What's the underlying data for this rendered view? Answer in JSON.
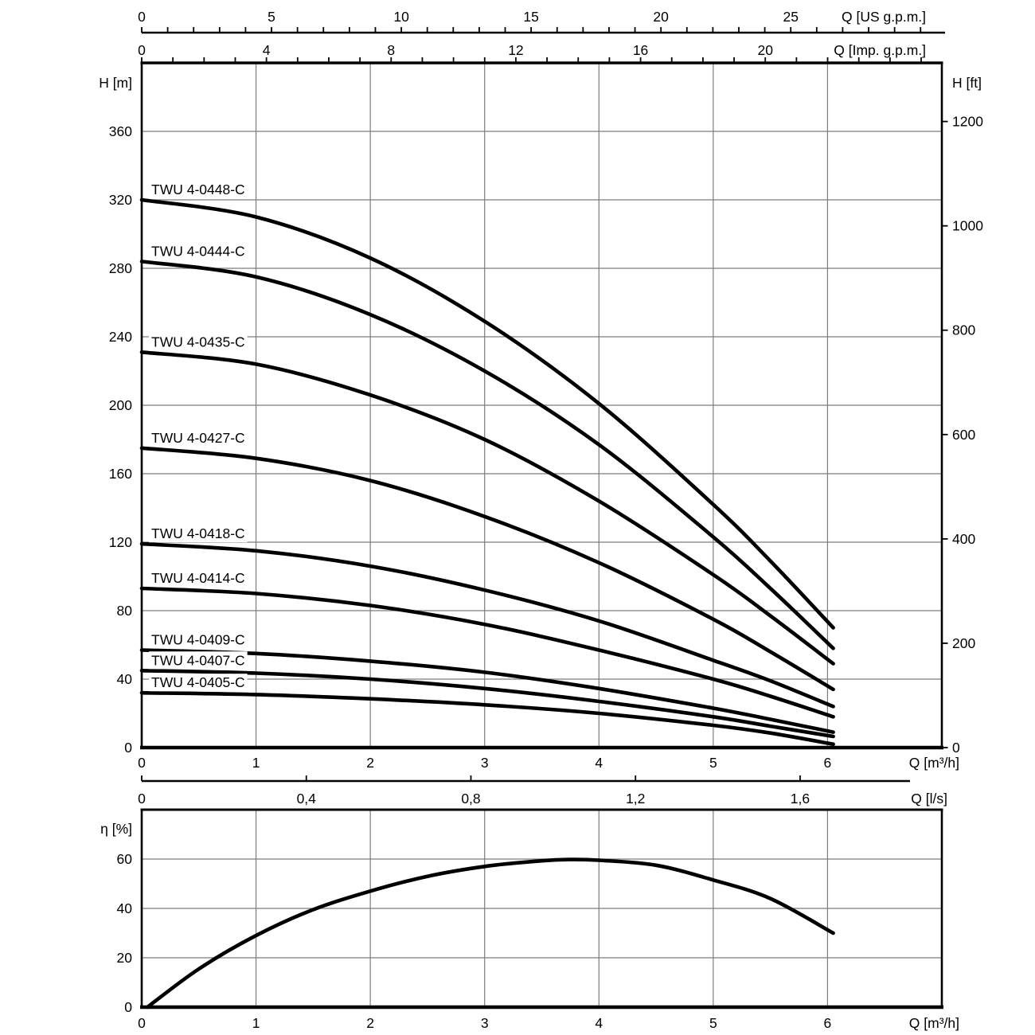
{
  "colors": {
    "curve": "#000000",
    "grid": "#7c7c7c",
    "axis": "#000000",
    "text": "#000000",
    "background": "#ffffff"
  },
  "chart_data": [
    {
      "type": "line",
      "id": "pump-head-chart",
      "title": "",
      "xlim_m3h": [
        0,
        7
      ],
      "ylim_m": [
        0,
        400
      ],
      "grid": {
        "x_step_m3h": 1,
        "y_step_m": 40,
        "grid_on": true
      },
      "x_axes": [
        {
          "id": "us-gpm",
          "unit_label": "Q [US g.p.m.]",
          "tick_labels": [
            "0",
            "5",
            "10",
            "15",
            "20",
            "25"
          ],
          "tick_values": [
            0,
            5,
            10,
            15,
            20,
            25
          ],
          "minor_tick_step": 1,
          "minor_tick_end": 30,
          "units_per_m3h": 4.4029
        },
        {
          "id": "imp-gpm",
          "unit_label": "Q [Imp. g.p.m.]",
          "tick_labels": [
            "0",
            "4",
            "8",
            "12",
            "16",
            "20"
          ],
          "tick_values": [
            0,
            4,
            8,
            12,
            16,
            20
          ],
          "minor_tick_step": 1,
          "minor_tick_end": 25,
          "units_per_m3h": 3.6662
        },
        {
          "id": "m3h",
          "unit_label": "Q [m³/h]",
          "tick_labels": [
            "0",
            "1",
            "2",
            "3",
            "4",
            "5",
            "6"
          ],
          "tick_values": [
            0,
            1,
            2,
            3,
            4,
            5,
            6
          ],
          "units_per_m3h": 1
        },
        {
          "id": "l-s",
          "unit_label": "Q [l/s]",
          "tick_labels": [
            "0",
            "0,4",
            "0,8",
            "1,2",
            "1,6"
          ],
          "tick_values": [
            0,
            0.4,
            0.8,
            1.2,
            1.6
          ],
          "units_per_m3h": 0.2777778
        }
      ],
      "y_axes": [
        {
          "id": "h-m",
          "side": "left",
          "unit_label": "H [m]",
          "tick_labels": [
            "0",
            "40",
            "80",
            "120",
            "160",
            "200",
            "240",
            "280",
            "320",
            "360"
          ],
          "tick_values": [
            0,
            40,
            80,
            120,
            160,
            200,
            240,
            280,
            320,
            360
          ],
          "units_per_m": 1
        },
        {
          "id": "h-ft",
          "side": "right",
          "unit_label": "H [ft]",
          "tick_labels": [
            "0",
            "200",
            "400",
            "600",
            "800",
            "1000",
            "1200"
          ],
          "tick_values": [
            0,
            200,
            400,
            600,
            800,
            1000,
            1200
          ],
          "units_per_m": 3.2808
        }
      ],
      "series": [
        {
          "name": "TWU 4-0448-C",
          "points": [
            [
              0,
              320
            ],
            [
              1,
              310
            ],
            [
              2,
              286
            ],
            [
              3,
              249
            ],
            [
              4,
              201
            ],
            [
              5,
              142
            ],
            [
              5.5,
              109
            ],
            [
              6.05,
              70
            ]
          ]
        },
        {
          "name": "TWU 4-0444-C",
          "points": [
            [
              0,
              284
            ],
            [
              1,
              275
            ],
            [
              2,
              253
            ],
            [
              3,
              220
            ],
            [
              4,
              177
            ],
            [
              5,
              123
            ],
            [
              5.5,
              93
            ],
            [
              6.05,
              58
            ]
          ]
        },
        {
          "name": "TWU 4-0435-C",
          "points": [
            [
              0,
              231
            ],
            [
              1,
              224
            ],
            [
              2,
              206
            ],
            [
              3,
              180
            ],
            [
              4,
              144
            ],
            [
              5,
              101
            ],
            [
              5.5,
              77
            ],
            [
              6.05,
              49
            ]
          ]
        },
        {
          "name": "TWU 4-0427-C",
          "points": [
            [
              0,
              175
            ],
            [
              1,
              169
            ],
            [
              2,
              156
            ],
            [
              3,
              135
            ],
            [
              4,
              108
            ],
            [
              5,
              75
            ],
            [
              5.5,
              56
            ],
            [
              6.05,
              34
            ]
          ]
        },
        {
          "name": "TWU 4-0418-C",
          "points": [
            [
              0,
              119
            ],
            [
              1,
              115
            ],
            [
              2,
              106
            ],
            [
              3,
              92
            ],
            [
              4,
              74
            ],
            [
              5,
              51
            ],
            [
              5.5,
              39
            ],
            [
              6.05,
              24
            ]
          ]
        },
        {
          "name": "TWU 4-0414-C",
          "points": [
            [
              0,
              93
            ],
            [
              1,
              90
            ],
            [
              2,
              83
            ],
            [
              3,
              72
            ],
            [
              4,
              57
            ],
            [
              5,
              40
            ],
            [
              5.5,
              30
            ],
            [
              6.05,
              18
            ]
          ]
        },
        {
          "name": "TWU 4-0409-C",
          "points": [
            [
              0,
              57
            ],
            [
              1,
              55
            ],
            [
              2,
              50.5
            ],
            [
              3,
              44
            ],
            [
              4,
              34.5
            ],
            [
              5,
              23
            ],
            [
              5.5,
              16.5
            ],
            [
              6.05,
              9
            ]
          ]
        },
        {
          "name": "TWU 4-0407-C",
          "points": [
            [
              0,
              45
            ],
            [
              1,
              43.5
            ],
            [
              2,
              40
            ],
            [
              3,
              34.5
            ],
            [
              4,
              27
            ],
            [
              5,
              18
            ],
            [
              5.5,
              12.5
            ],
            [
              6.05,
              6.5
            ]
          ]
        },
        {
          "name": "TWU 4-0405-C",
          "points": [
            [
              0,
              32
            ],
            [
              1,
              31
            ],
            [
              2,
              28.5
            ],
            [
              3,
              25
            ],
            [
              4,
              20
            ],
            [
              5,
              13
            ],
            [
              5.5,
              8.5
            ],
            [
              6.05,
              2
            ]
          ]
        }
      ]
    },
    {
      "type": "line",
      "id": "efficiency-chart",
      "title": "",
      "xlim_m3h": [
        0,
        7
      ],
      "ylim_pct": [
        0,
        80
      ],
      "grid": {
        "x_step_m3h": 1,
        "y_step_pct": 20,
        "grid_on": true
      },
      "y_axis": {
        "unit_label": "η [%]",
        "tick_labels": [
          "0",
          "20",
          "40",
          "60"
        ],
        "tick_values": [
          0,
          20,
          40,
          60
        ]
      },
      "x_axis": {
        "unit_label": "Q [m³/h]",
        "tick_labels": [
          "0",
          "1",
          "2",
          "3",
          "4",
          "5",
          "6"
        ],
        "tick_values": [
          0,
          1,
          2,
          3,
          4,
          5,
          6
        ]
      },
      "series": [
        {
          "name": "efficiency",
          "points": [
            [
              0.05,
              0
            ],
            [
              0.5,
              15.5
            ],
            [
              1,
              29
            ],
            [
              1.5,
              39.5
            ],
            [
              2,
              47
            ],
            [
              2.5,
              53
            ],
            [
              3,
              57
            ],
            [
              3.5,
              59.3
            ],
            [
              3.75,
              59.8
            ],
            [
              4,
              59.5
            ],
            [
              4.5,
              57.5
            ],
            [
              5,
              51.5
            ],
            [
              5.5,
              44
            ],
            [
              6.05,
              30
            ]
          ]
        }
      ]
    }
  ]
}
